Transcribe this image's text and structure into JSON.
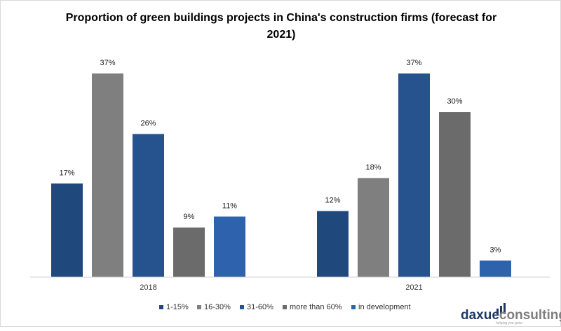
{
  "chart_data": {
    "type": "bar",
    "title": "Proportion of green buildings projects in China's construction firms (forecast for 2021)",
    "title_lines": [
      "Proportion of green buildings projects in China's construction firms (forecast for",
      "2021)"
    ],
    "categories": [
      "2018",
      "2021"
    ],
    "series": [
      {
        "name": "1-15%",
        "color": "#1f497d",
        "values": [
          17,
          12
        ],
        "labels": [
          "17%",
          "12%"
        ]
      },
      {
        "name": "16-30%",
        "color": "#7f7f7f",
        "values": [
          37,
          18
        ],
        "labels": [
          "37%",
          "18%"
        ]
      },
      {
        "name": "31-60%",
        "color": "#26538d",
        "values": [
          26,
          37
        ],
        "labels": [
          "26%",
          "37%"
        ]
      },
      {
        "name": "more than 60%",
        "color": "#6b6b6b",
        "values": [
          9,
          30
        ],
        "labels": [
          "9%",
          "30%"
        ]
      },
      {
        "name": "in development",
        "color": "#2e62ad",
        "values": [
          11,
          3
        ],
        "labels": [
          "11%",
          "3%"
        ]
      }
    ],
    "ylim": [
      0,
      40
    ],
    "xlabel": "",
    "ylabel": "",
    "grid": false,
    "legend_position": "bottom"
  },
  "brand": {
    "name_dark": "daxue",
    "name_light": "consulting",
    "tagline": "helping you grow",
    "dark_color": "#1f3864",
    "light_color": "#7f7f7f"
  }
}
